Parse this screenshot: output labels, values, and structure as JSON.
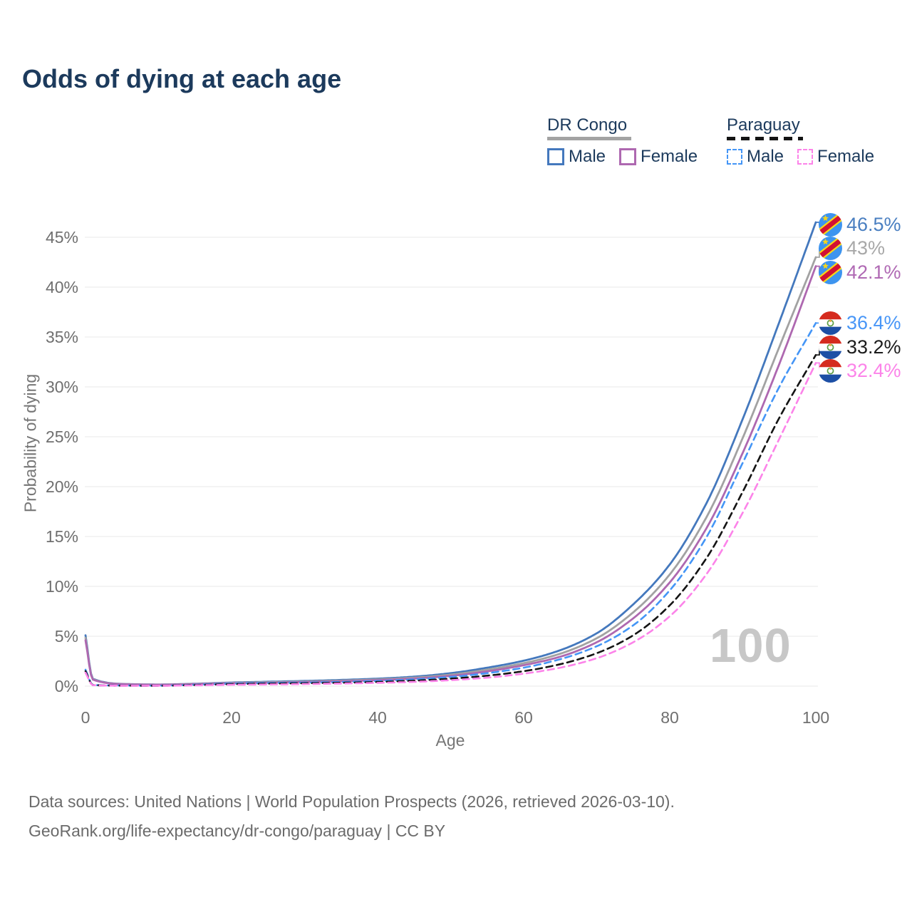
{
  "title": "Odds of dying at each age",
  "watermark": "100",
  "legend": {
    "groups": [
      {
        "country": "DR Congo",
        "line_style": "solid",
        "underline_color": "#a3a3a3",
        "items": [
          {
            "label": "Male",
            "color": "#4478bd",
            "dashed": false
          },
          {
            "label": "Female",
            "color": "#ae68b0",
            "dashed": false
          }
        ]
      },
      {
        "country": "Paraguay",
        "line_style": "dashed",
        "underline_color": "#141414",
        "items": [
          {
            "label": "Male",
            "color": "#4495f6",
            "dashed": true
          },
          {
            "label": "Female",
            "color": "#fc83e9",
            "dashed": true
          }
        ]
      }
    ]
  },
  "chart_data": {
    "type": "line",
    "title": "Odds of dying at each age",
    "xlabel": "Age",
    "ylabel": "Probability of dying",
    "xlim": [
      0,
      100
    ],
    "ylim": [
      0,
      47
    ],
    "xticks": [
      0,
      20,
      40,
      60,
      80,
      100
    ],
    "yticks": [
      0,
      5,
      10,
      15,
      20,
      25,
      30,
      35,
      40,
      45
    ],
    "ytick_suffix": "%",
    "grid": "horizontal",
    "ages": [
      0,
      1,
      5,
      10,
      15,
      20,
      25,
      30,
      35,
      40,
      45,
      50,
      55,
      60,
      65,
      70,
      75,
      80,
      85,
      90,
      95,
      100
    ],
    "series": [
      {
        "name": "DR Congo Male",
        "country": "DR Congo",
        "sex": "Male",
        "color": "#4478bd",
        "dashed": false,
        "values": [
          5.1,
          0.75,
          0.22,
          0.16,
          0.24,
          0.36,
          0.44,
          0.52,
          0.62,
          0.75,
          0.95,
          1.3,
          1.85,
          2.55,
          3.6,
          5.3,
          8.2,
          12.2,
          18.3,
          26.8,
          36.5,
          46.5
        ],
        "end_label": "46.5%",
        "end_label_color": "#4a7fc1"
      },
      {
        "name": "DR Congo Both sexes",
        "country": "DR Congo",
        "sex": "Both",
        "color": "#a2a2a2",
        "dashed": false,
        "values": [
          4.85,
          0.7,
          0.21,
          0.15,
          0.22,
          0.32,
          0.39,
          0.46,
          0.55,
          0.67,
          0.85,
          1.15,
          1.65,
          2.3,
          3.25,
          4.8,
          7.4,
          11.2,
          16.9,
          24.9,
          34.0,
          43.0
        ],
        "end_label": "43%",
        "end_label_color": "#a8a8a8"
      },
      {
        "name": "DR Congo Female",
        "country": "DR Congo",
        "sex": "Female",
        "color": "#ae68b0",
        "dashed": false,
        "values": [
          4.6,
          0.66,
          0.2,
          0.14,
          0.2,
          0.28,
          0.34,
          0.41,
          0.49,
          0.6,
          0.76,
          1.03,
          1.48,
          2.1,
          2.95,
          4.4,
          6.8,
          10.4,
          15.8,
          23.4,
          32.3,
          42.1
        ],
        "end_label": "42.1%",
        "end_label_color": "#b06ab4"
      },
      {
        "name": "Paraguay Male",
        "country": "Paraguay",
        "sex": "Male",
        "color": "#4495f6",
        "dashed": true,
        "values": [
          1.65,
          0.12,
          0.06,
          0.05,
          0.14,
          0.26,
          0.32,
          0.36,
          0.42,
          0.52,
          0.68,
          0.92,
          1.3,
          1.85,
          2.7,
          4.0,
          6.1,
          9.6,
          14.9,
          22.4,
          30.0,
          36.4
        ],
        "end_label": "36.4%",
        "end_label_color": "#4896f7"
      },
      {
        "name": "Paraguay Both sexes",
        "country": "Paraguay",
        "sex": "Both",
        "color": "#141414",
        "dashed": true,
        "values": [
          1.5,
          0.11,
          0.05,
          0.045,
          0.11,
          0.2,
          0.25,
          0.29,
          0.34,
          0.42,
          0.55,
          0.75,
          1.05,
          1.5,
          2.2,
          3.3,
          5.1,
          8.1,
          12.8,
          19.5,
          26.9,
          33.2
        ],
        "end_label": "33.2%",
        "end_label_color": "#1c1c1c"
      },
      {
        "name": "Paraguay Female",
        "country": "Paraguay",
        "sex": "Female",
        "color": "#fc83e9",
        "dashed": true,
        "values": [
          1.35,
          0.1,
          0.045,
          0.04,
          0.08,
          0.14,
          0.17,
          0.21,
          0.26,
          0.33,
          0.43,
          0.6,
          0.85,
          1.25,
          1.85,
          2.8,
          4.4,
          7.0,
          11.2,
          17.4,
          24.8,
          32.4
        ],
        "end_label": "32.4%",
        "end_label_color": "#fc83e9"
      }
    ]
  },
  "footer": {
    "line1": "Data sources: United Nations | World Population Prospects (2026, retrieved 2026-03-10).",
    "line2": "GeoRank.org/life-expectancy/dr-congo/paraguay | CC BY"
  }
}
